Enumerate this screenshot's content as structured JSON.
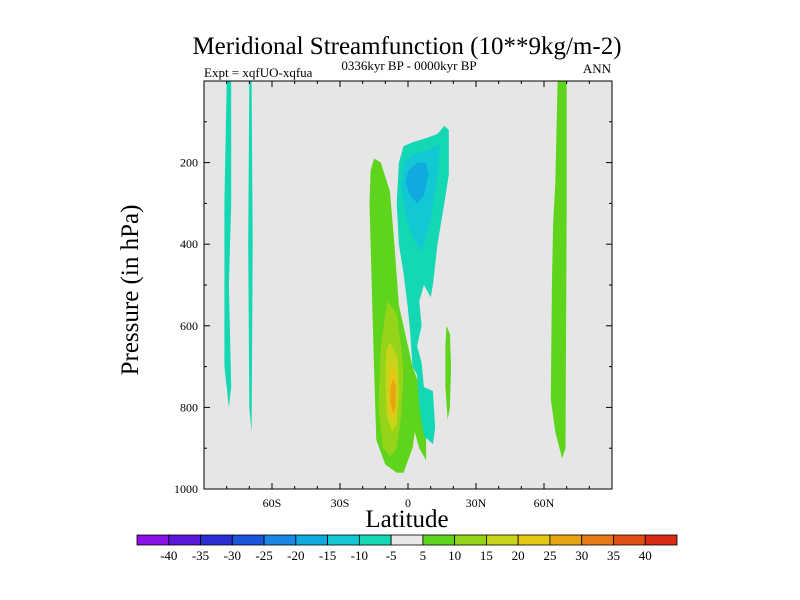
{
  "chart_data": {
    "type": "contour",
    "title": "Meridional Streamfunction (10**9kg/m-2)",
    "left_label": "Expt = xqfUO-xqfua",
    "center_label": "0336kyr BP - 0000kyr BP",
    "right_label": "ANN",
    "xlabel": "Latitude",
    "ylabel": "Pressure (in hPa)",
    "xlim": [
      -90,
      90
    ],
    "ylim": [
      1000,
      0
    ],
    "x_ticks": [
      {
        "value": -60,
        "label": "60S"
      },
      {
        "value": -30,
        "label": "30S"
      },
      {
        "value": 0,
        "label": "0"
      },
      {
        "value": 30,
        "label": "30N"
      },
      {
        "value": 60,
        "label": "60N"
      }
    ],
    "y_ticks": [
      {
        "value": 200,
        "label": "200"
      },
      {
        "value": 400,
        "label": "400"
      },
      {
        "value": 600,
        "label": "600"
      },
      {
        "value": 800,
        "label": "800"
      },
      {
        "value": 1000,
        "label": "1000"
      }
    ],
    "background_color": "#e6e6e6",
    "colorbar": {
      "labels": [
        "-40",
        "-35",
        "-30",
        "-25",
        "-20",
        "-15",
        "-10",
        "-5",
        "5",
        "10",
        "15",
        "20",
        "25",
        "30",
        "35",
        "40"
      ],
      "colors": [
        "#8a12e6",
        "#5a18d8",
        "#2b2ed0",
        "#1a56dc",
        "#1a86e6",
        "#10aae0",
        "#12c8d4",
        "#14d8b4",
        "#e8e8e8",
        "#5ed41c",
        "#96d41a",
        "#c8d41a",
        "#e6c814",
        "#e6a614",
        "#e67a14",
        "#e05014",
        "#d82a14"
      ]
    },
    "regions": [
      {
        "name": "cell-5-neg-far-south-a",
        "value": -5,
        "color": "#14d8b4",
        "points": [
          [
            -80,
            0
          ],
          [
            -78,
            0
          ],
          [
            -78,
            300
          ],
          [
            -79,
            500
          ],
          [
            -78,
            750
          ],
          [
            -79,
            800
          ],
          [
            -81,
            700
          ],
          [
            -81,
            300
          ]
        ]
      },
      {
        "name": "cell-5-neg-far-south-b",
        "value": -5,
        "color": "#14d8b4",
        "points": [
          [
            -70,
            0
          ],
          [
            -69,
            0
          ],
          [
            -68.5,
            400
          ],
          [
            -69,
            860
          ],
          [
            -70,
            800
          ],
          [
            -70.5,
            400
          ]
        ]
      },
      {
        "name": "cell-5-pos-north-strip",
        "value": 5,
        "color": "#5ed41c",
        "points": [
          [
            66,
            0
          ],
          [
            70,
            0
          ],
          [
            70,
            300
          ],
          [
            69.5,
            900
          ],
          [
            68,
            925
          ],
          [
            65,
            860
          ],
          [
            63,
            780
          ],
          [
            63.5,
            500
          ],
          [
            64,
            350
          ],
          [
            65,
            250
          ]
        ]
      },
      {
        "name": "cell-5-pos-tropical",
        "value": 5,
        "color": "#5ed41c",
        "points": [
          [
            -15,
            190
          ],
          [
            -12,
            200
          ],
          [
            -8,
            270
          ],
          [
            -6,
            400
          ],
          [
            -4,
            550
          ],
          [
            0,
            650
          ],
          [
            2,
            700
          ],
          [
            6,
            760
          ],
          [
            8,
            850
          ],
          [
            8,
            930
          ],
          [
            5,
            900
          ],
          [
            3,
            860
          ],
          [
            2,
            900
          ],
          [
            0,
            930
          ],
          [
            -2,
            960
          ],
          [
            -5,
            960
          ],
          [
            -10,
            940
          ],
          [
            -14,
            880
          ],
          [
            -15,
            700
          ],
          [
            -16,
            500
          ],
          [
            -17,
            300
          ],
          [
            -16.5,
            220
          ]
        ]
      },
      {
        "name": "cell-5-pos-northern-sliver",
        "value": 5,
        "color": "#5ed41c",
        "points": [
          [
            17,
            600
          ],
          [
            18.5,
            620
          ],
          [
            19,
            700
          ],
          [
            18.5,
            800
          ],
          [
            17.5,
            830
          ],
          [
            16.5,
            750
          ],
          [
            16.5,
            650
          ]
        ]
      },
      {
        "name": "cell-10",
        "value": 10,
        "color": "#96d41a",
        "points": [
          [
            -9,
            540
          ],
          [
            -5,
            570
          ],
          [
            -3,
            650
          ],
          [
            -2,
            720
          ],
          [
            -3,
            820
          ],
          [
            -5,
            900
          ],
          [
            -8,
            920
          ],
          [
            -11,
            900
          ],
          [
            -13,
            800
          ],
          [
            -12,
            650
          ],
          [
            -10,
            570
          ]
        ]
      },
      {
        "name": "cell-15",
        "value": 15,
        "color": "#c8d41a",
        "points": [
          [
            -8,
            640
          ],
          [
            -4.5,
            680
          ],
          [
            -4,
            760
          ],
          [
            -5,
            840
          ],
          [
            -7,
            860
          ],
          [
            -9.5,
            820
          ],
          [
            -10,
            720
          ],
          [
            -9.5,
            660
          ]
        ]
      },
      {
        "name": "cell-20",
        "value": 20,
        "color": "#e6c814",
        "points": [
          [
            -7,
            690
          ],
          [
            -5,
            720
          ],
          [
            -5,
            800
          ],
          [
            -6.5,
            830
          ],
          [
            -8.5,
            810
          ],
          [
            -8.5,
            730
          ]
        ]
      },
      {
        "name": "cell-25",
        "value": 25,
        "color": "#e6a614",
        "points": [
          [
            -6.5,
            730
          ],
          [
            -5.2,
            750
          ],
          [
            -5.5,
            800
          ],
          [
            -6.5,
            815
          ],
          [
            -7.8,
            790
          ],
          [
            -7.8,
            750
          ]
        ]
      },
      {
        "name": "cell-5-neg-tropical",
        "value": -5,
        "color": "#14d8b4",
        "points": [
          [
            -4,
            200
          ],
          [
            -2,
            160
          ],
          [
            2,
            150
          ],
          [
            8,
            140
          ],
          [
            13,
            130
          ],
          [
            16,
            110
          ],
          [
            18,
            120
          ],
          [
            18,
            230
          ],
          [
            16,
            300
          ],
          [
            13,
            400
          ],
          [
            11,
            500
          ],
          [
            10,
            530
          ],
          [
            7,
            500
          ],
          [
            5,
            540
          ],
          [
            6,
            600
          ],
          [
            4,
            650
          ],
          [
            6,
            690
          ],
          [
            7,
            750
          ],
          [
            11,
            760
          ],
          [
            12,
            850
          ],
          [
            11,
            890
          ],
          [
            7,
            870
          ],
          [
            5,
            800
          ],
          [
            4,
            720
          ],
          [
            2,
            700
          ],
          [
            1,
            620
          ],
          [
            0,
            560
          ],
          [
            -2,
            470
          ],
          [
            -4,
            400
          ],
          [
            -5,
            300
          ]
        ]
      },
      {
        "name": "cell-10-neg",
        "value": -10,
        "color": "#12c8d4",
        "points": [
          [
            -2,
            200
          ],
          [
            2,
            180
          ],
          [
            8,
            170
          ],
          [
            12,
            160
          ],
          [
            14,
            155
          ],
          [
            13,
            230
          ],
          [
            10,
            340
          ],
          [
            8,
            380
          ],
          [
            6,
            420
          ],
          [
            2,
            380
          ],
          [
            -1,
            330
          ],
          [
            -3,
            260
          ]
        ]
      },
      {
        "name": "cell-15-neg",
        "value": -15,
        "color": "#10aae0",
        "points": [
          [
            0,
            220
          ],
          [
            4,
            200
          ],
          [
            8,
            200
          ],
          [
            9,
            230
          ],
          [
            7,
            280
          ],
          [
            4,
            300
          ],
          [
            1,
            280
          ],
          [
            -1,
            250
          ]
        ]
      }
    ]
  }
}
